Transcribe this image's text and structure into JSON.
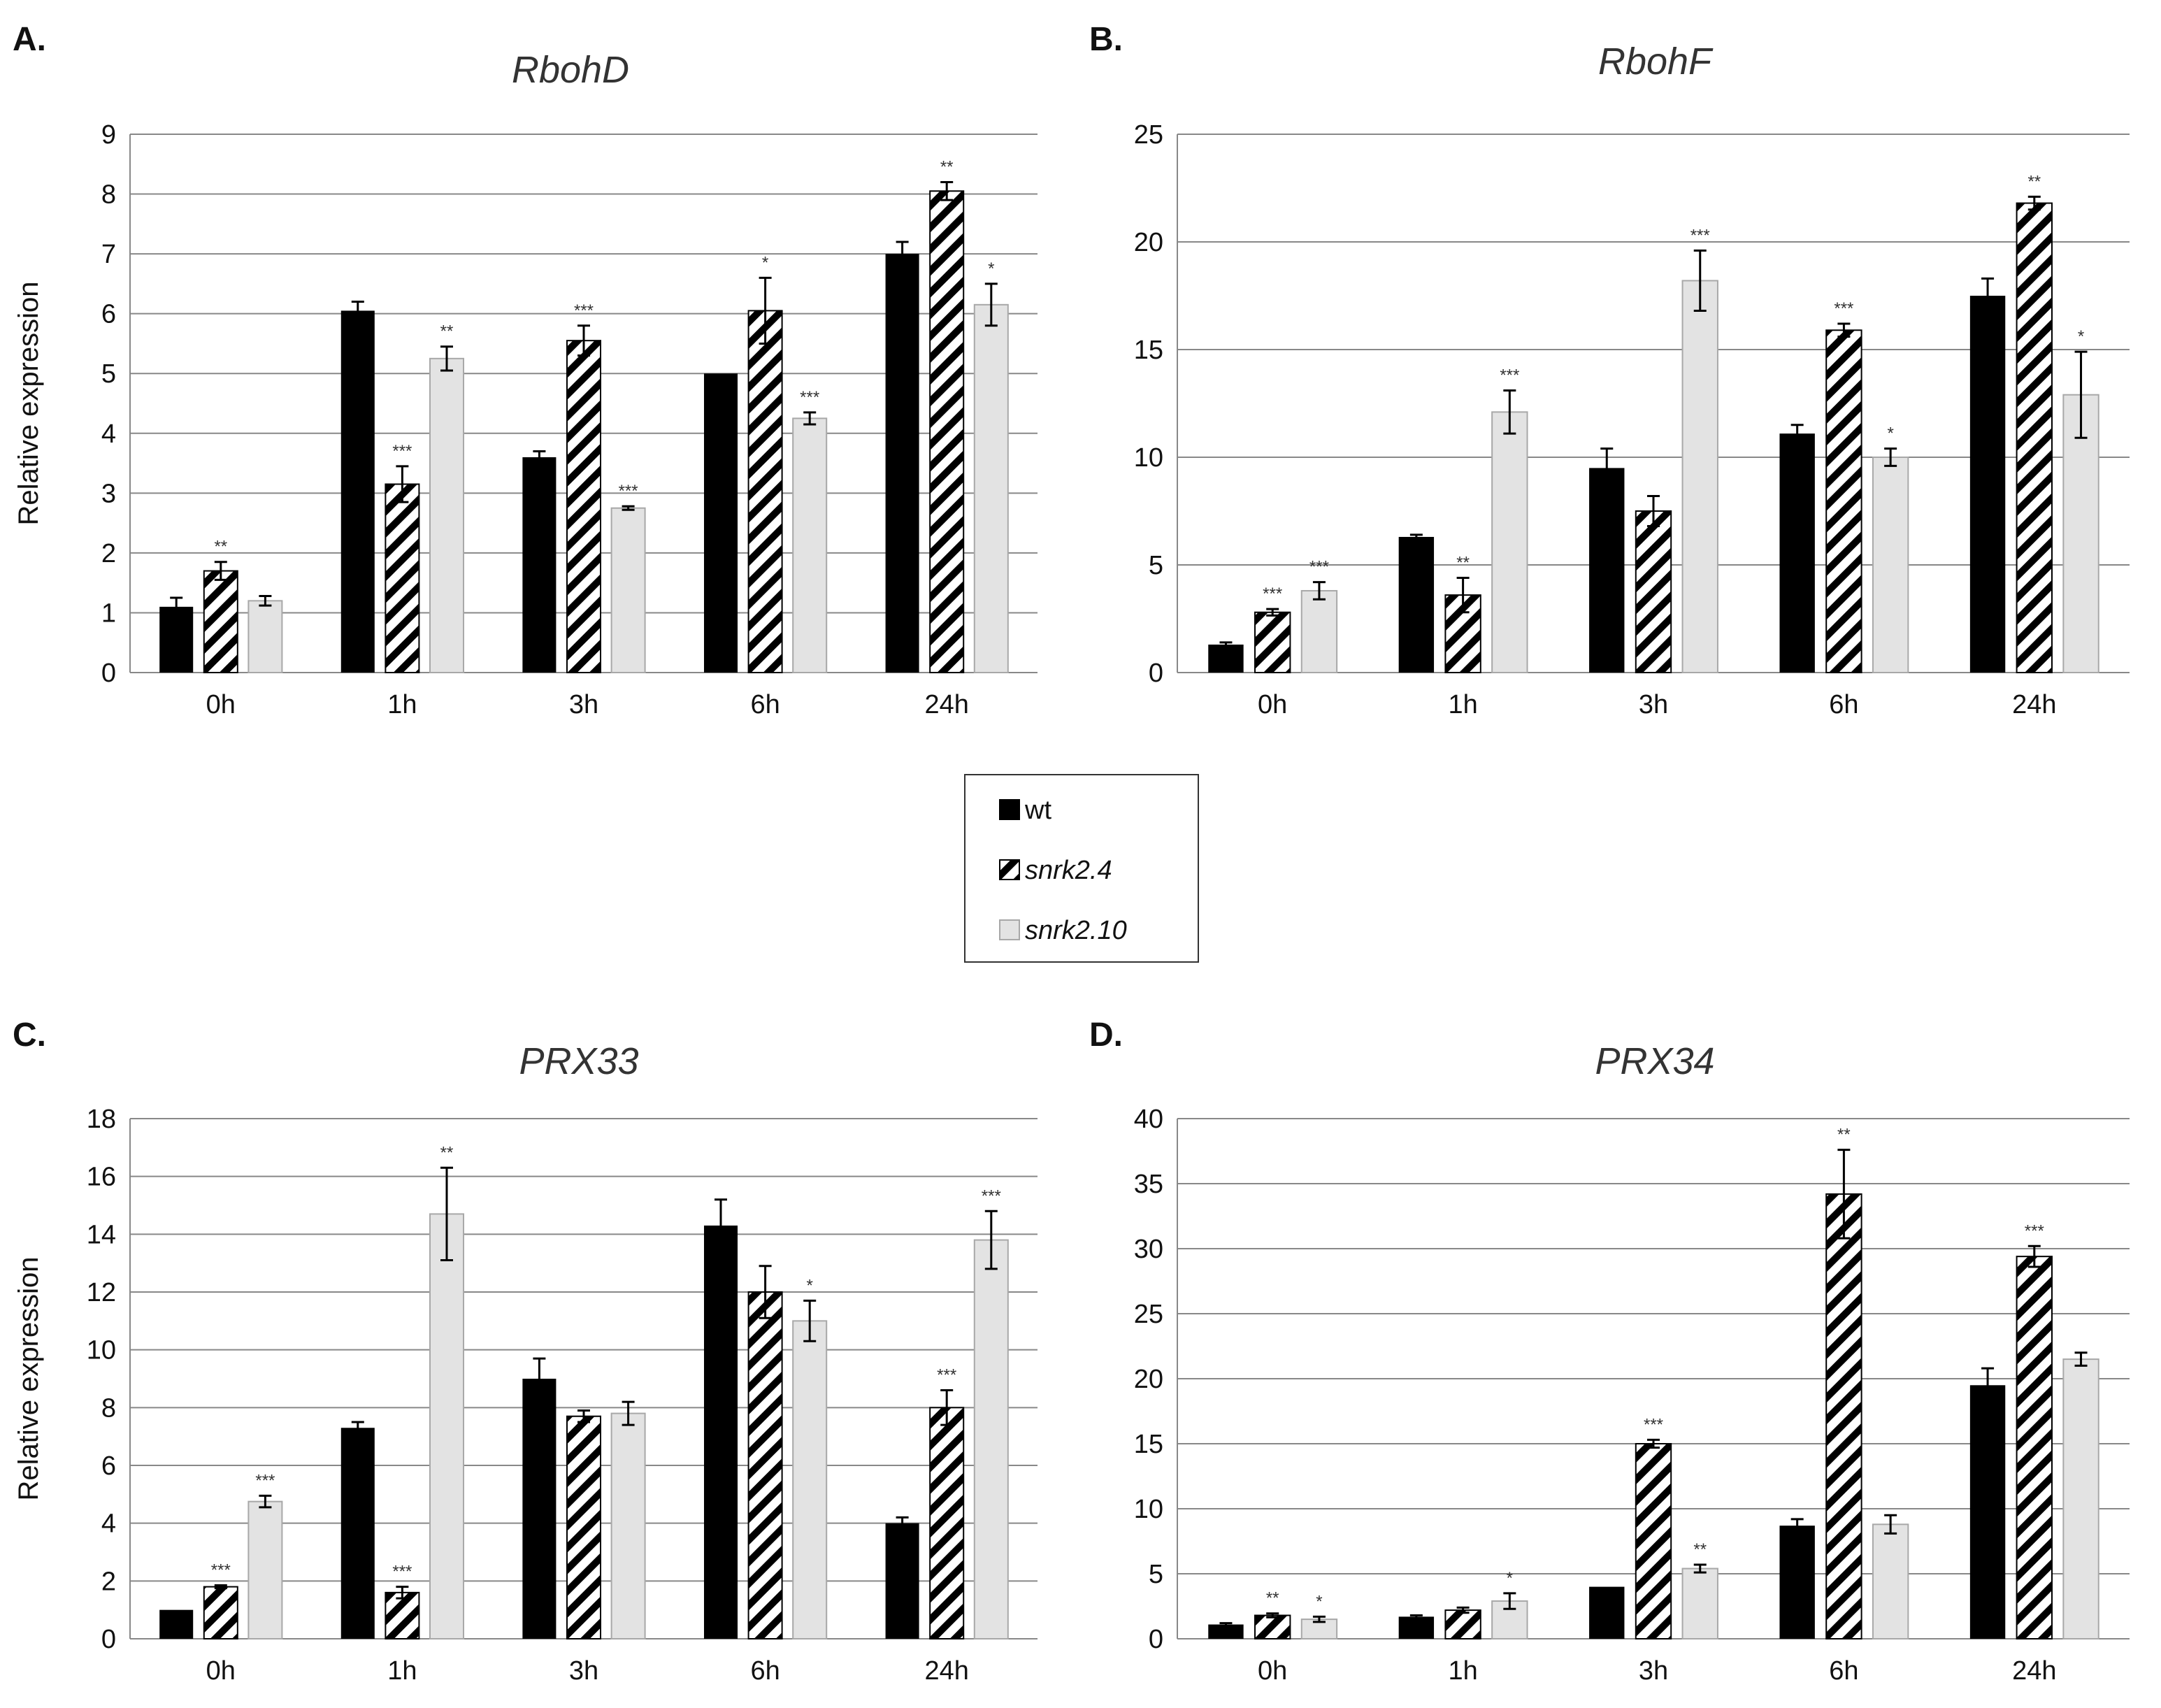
{
  "figure": {
    "legend": [
      {
        "label": "wt",
        "style": "solid",
        "italic": false
      },
      {
        "label": "snrk2.4",
        "style": "hatch",
        "italic": true
      },
      {
        "label": "snrk2.10",
        "style": "light",
        "italic": true
      }
    ],
    "colors": {
      "wt": "#000000",
      "snrk24_hatch": "#000000",
      "snrk24_bg": "#ffffff",
      "snrk210": "#e3e3e3",
      "grid": "#888888",
      "error_bar": "#000000"
    }
  },
  "chart_data": [
    {
      "panel": "A.",
      "type": "bar",
      "title": "RbohD",
      "ylabel": "Relative expression",
      "xlabel": "",
      "categories": [
        "0h",
        "1h",
        "3h",
        "6h",
        "24h"
      ],
      "ylim": [
        0,
        9
      ],
      "yticks": [
        0,
        1,
        2,
        3,
        4,
        5,
        6,
        7,
        8,
        9
      ],
      "grid": true,
      "series": [
        {
          "name": "wt",
          "values": [
            1.1,
            6.05,
            3.6,
            5.0,
            7.0
          ],
          "errors": [
            0.15,
            0.15,
            0.1,
            0.0,
            0.2
          ],
          "sig": [
            "",
            "",
            "",
            "",
            ""
          ]
        },
        {
          "name": "snrk2.4",
          "values": [
            1.7,
            3.15,
            5.55,
            6.05,
            8.05
          ],
          "errors": [
            0.15,
            0.3,
            0.25,
            0.55,
            0.15
          ],
          "sig": [
            "**",
            "***",
            "***",
            "*",
            "**"
          ]
        },
        {
          "name": "snrk2.10",
          "values": [
            1.2,
            5.25,
            2.75,
            4.25,
            6.15
          ],
          "errors": [
            0.08,
            0.2,
            0.03,
            0.1,
            0.35
          ],
          "sig": [
            "",
            "**",
            "***",
            "***",
            "*"
          ]
        }
      ]
    },
    {
      "panel": "B.",
      "type": "bar",
      "title": "RbohF",
      "ylabel": "",
      "xlabel": "",
      "categories": [
        "0h",
        "1h",
        "3h",
        "6h",
        "24h"
      ],
      "ylim": [
        0,
        25
      ],
      "yticks": [
        0,
        5,
        10,
        15,
        20,
        25
      ],
      "grid": true,
      "series": [
        {
          "name": "wt",
          "values": [
            1.3,
            6.3,
            9.5,
            11.1,
            17.5
          ],
          "errors": [
            0.1,
            0.1,
            0.9,
            0.4,
            0.8
          ],
          "sig": [
            "",
            "",
            "",
            "",
            ""
          ]
        },
        {
          "name": "snrk2.4",
          "values": [
            2.8,
            3.6,
            7.5,
            15.9,
            21.8
          ],
          "errors": [
            0.15,
            0.8,
            0.7,
            0.3,
            0.3
          ],
          "sig": [
            "***",
            "**",
            "",
            "***",
            "**"
          ]
        },
        {
          "name": "snrk2.10",
          "values": [
            3.8,
            12.1,
            18.2,
            10.0,
            12.9
          ],
          "errors": [
            0.4,
            1.0,
            1.4,
            0.4,
            2.0
          ],
          "sig": [
            "***",
            "***",
            "***",
            "*",
            "*"
          ]
        }
      ]
    },
    {
      "panel": "C.",
      "type": "bar",
      "title": "PRX33",
      "ylabel": "Relative expression",
      "xlabel": "",
      "categories": [
        "0h",
        "1h",
        "3h",
        "6h",
        "24h"
      ],
      "ylim": [
        0,
        18
      ],
      "yticks": [
        0,
        2,
        4,
        6,
        8,
        10,
        12,
        14,
        16,
        18
      ],
      "grid": true,
      "series": [
        {
          "name": "wt",
          "values": [
            1.0,
            7.3,
            9.0,
            14.3,
            4.0
          ],
          "errors": [
            0.0,
            0.2,
            0.7,
            0.9,
            0.2
          ],
          "sig": [
            "",
            "",
            "",
            "",
            ""
          ]
        },
        {
          "name": "snrk2.4",
          "values": [
            1.8,
            1.6,
            7.7,
            12.0,
            8.0
          ],
          "errors": [
            0.05,
            0.2,
            0.2,
            0.9,
            0.6
          ],
          "sig": [
            "***",
            "***",
            "",
            "",
            "***"
          ]
        },
        {
          "name": "snrk2.10",
          "values": [
            4.75,
            14.7,
            7.8,
            11.0,
            13.8
          ],
          "errors": [
            0.2,
            1.6,
            0.4,
            0.7,
            1.0
          ],
          "sig": [
            "***",
            "**",
            "",
            "*",
            "***"
          ]
        }
      ]
    },
    {
      "panel": "D.",
      "type": "bar",
      "title": "PRX34",
      "ylabel": "",
      "xlabel": "",
      "categories": [
        "0h",
        "1h",
        "3h",
        "6h",
        "24h"
      ],
      "ylim": [
        0,
        40
      ],
      "yticks": [
        0,
        5,
        10,
        15,
        20,
        25,
        30,
        35,
        40
      ],
      "grid": true,
      "series": [
        {
          "name": "wt",
          "values": [
            1.1,
            1.7,
            4.0,
            8.7,
            19.5
          ],
          "errors": [
            0.1,
            0.1,
            0.0,
            0.5,
            1.3
          ],
          "sig": [
            "",
            "",
            "",
            "",
            ""
          ]
        },
        {
          "name": "snrk2.4",
          "values": [
            1.8,
            2.2,
            15.0,
            34.2,
            29.4
          ],
          "errors": [
            0.15,
            0.2,
            0.3,
            3.4,
            0.8
          ],
          "sig": [
            "**",
            "",
            "***",
            "**",
            "***"
          ]
        },
        {
          "name": "snrk2.10",
          "values": [
            1.5,
            2.9,
            5.4,
            8.8,
            21.5
          ],
          "errors": [
            0.2,
            0.6,
            0.3,
            0.7,
            0.5
          ],
          "sig": [
            "*",
            "*",
            "**",
            "",
            ""
          ]
        }
      ]
    }
  ]
}
